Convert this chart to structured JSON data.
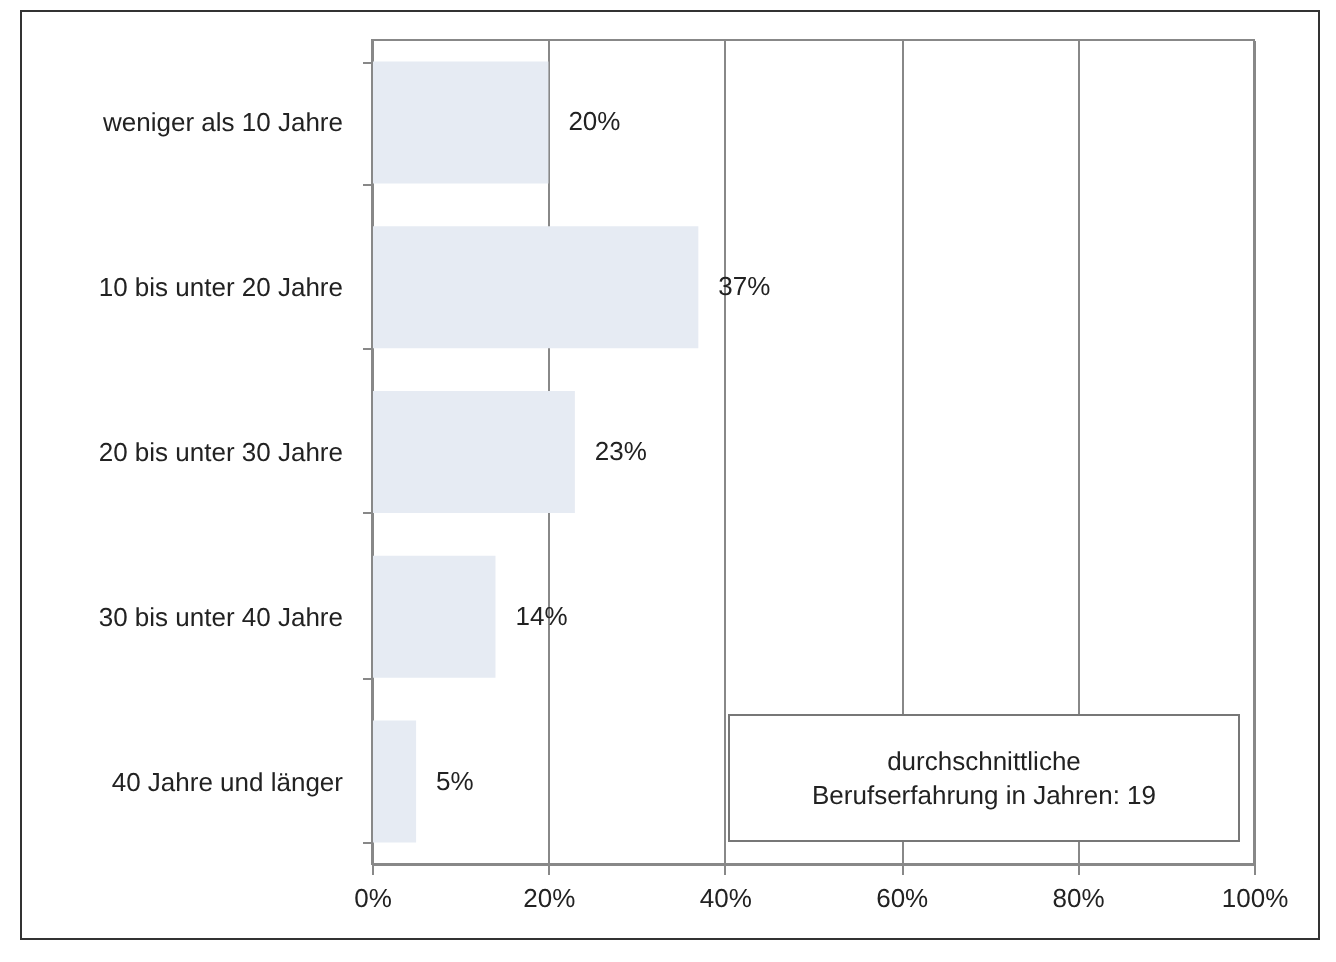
{
  "chart_data": {
    "type": "bar",
    "orientation": "horizontal",
    "categories": [
      "weniger als 10 Jahre",
      "10 bis unter 20 Jahre",
      "20 bis unter 30 Jahre",
      "30 bis unter 40 Jahre",
      "40 Jahre und länger"
    ],
    "values": [
      20,
      37,
      23,
      14,
      5
    ],
    "value_labels": [
      "20%",
      "37%",
      "23%",
      "14%",
      "5%"
    ],
    "color": "#e6ebf3",
    "xlim": [
      0,
      100
    ],
    "xticks": [
      {
        "value": 0,
        "label": "0%"
      },
      {
        "value": 20,
        "label": "20%"
      },
      {
        "value": 40,
        "label": "40%"
      },
      {
        "value": 60,
        "label": "60%"
      },
      {
        "value": 80,
        "label": "80%"
      },
      {
        "value": 100,
        "label": "100%"
      }
    ],
    "grid": "x",
    "annotations": [
      "durchschnittliche\nBerufserfahrung in Jahren: 19"
    ]
  }
}
